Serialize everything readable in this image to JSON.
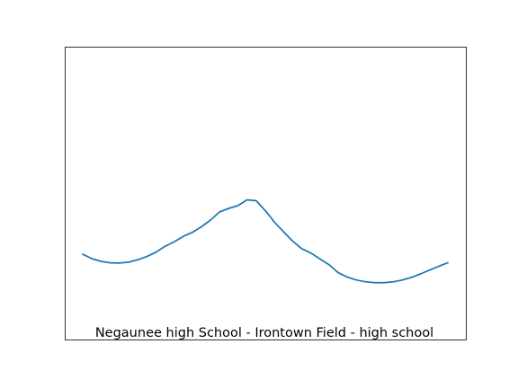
{
  "chart_data": {
    "type": "line",
    "title": "",
    "xlabel": "",
    "ylabel": "",
    "axes_visible": false,
    "grid": false,
    "annotation": "Negaunee high School - Irontown Field - high school",
    "xlim": [
      0,
      1
    ],
    "ylim": [
      0,
      1
    ],
    "series": [
      {
        "color": "#1f77b4",
        "x": [
          0.0,
          0.025,
          0.05,
          0.075,
          0.1,
          0.125,
          0.15,
          0.175,
          0.2,
          0.225,
          0.25,
          0.275,
          0.3,
          0.325,
          0.35,
          0.375,
          0.4,
          0.425,
          0.45,
          0.475,
          0.5,
          0.515,
          0.525,
          0.55,
          0.575,
          0.6,
          0.625,
          0.65,
          0.675,
          0.7,
          0.725,
          0.75,
          0.775,
          0.8,
          0.825,
          0.85,
          0.875,
          0.9,
          0.925,
          0.95,
          0.975,
          1.0
        ],
        "y": [
          0.291,
          0.276,
          0.267,
          0.262,
          0.261,
          0.264,
          0.272,
          0.283,
          0.298,
          0.318,
          0.333,
          0.352,
          0.366,
          0.385,
          0.408,
          0.436,
          0.448,
          0.457,
          0.477,
          0.474,
          0.44,
          0.417,
          0.401,
          0.368,
          0.336,
          0.31,
          0.295,
          0.275,
          0.255,
          0.228,
          0.213,
          0.203,
          0.197,
          0.194,
          0.194,
          0.197,
          0.203,
          0.212,
          0.224,
          0.237,
          0.25,
          0.262
        ]
      }
    ]
  }
}
